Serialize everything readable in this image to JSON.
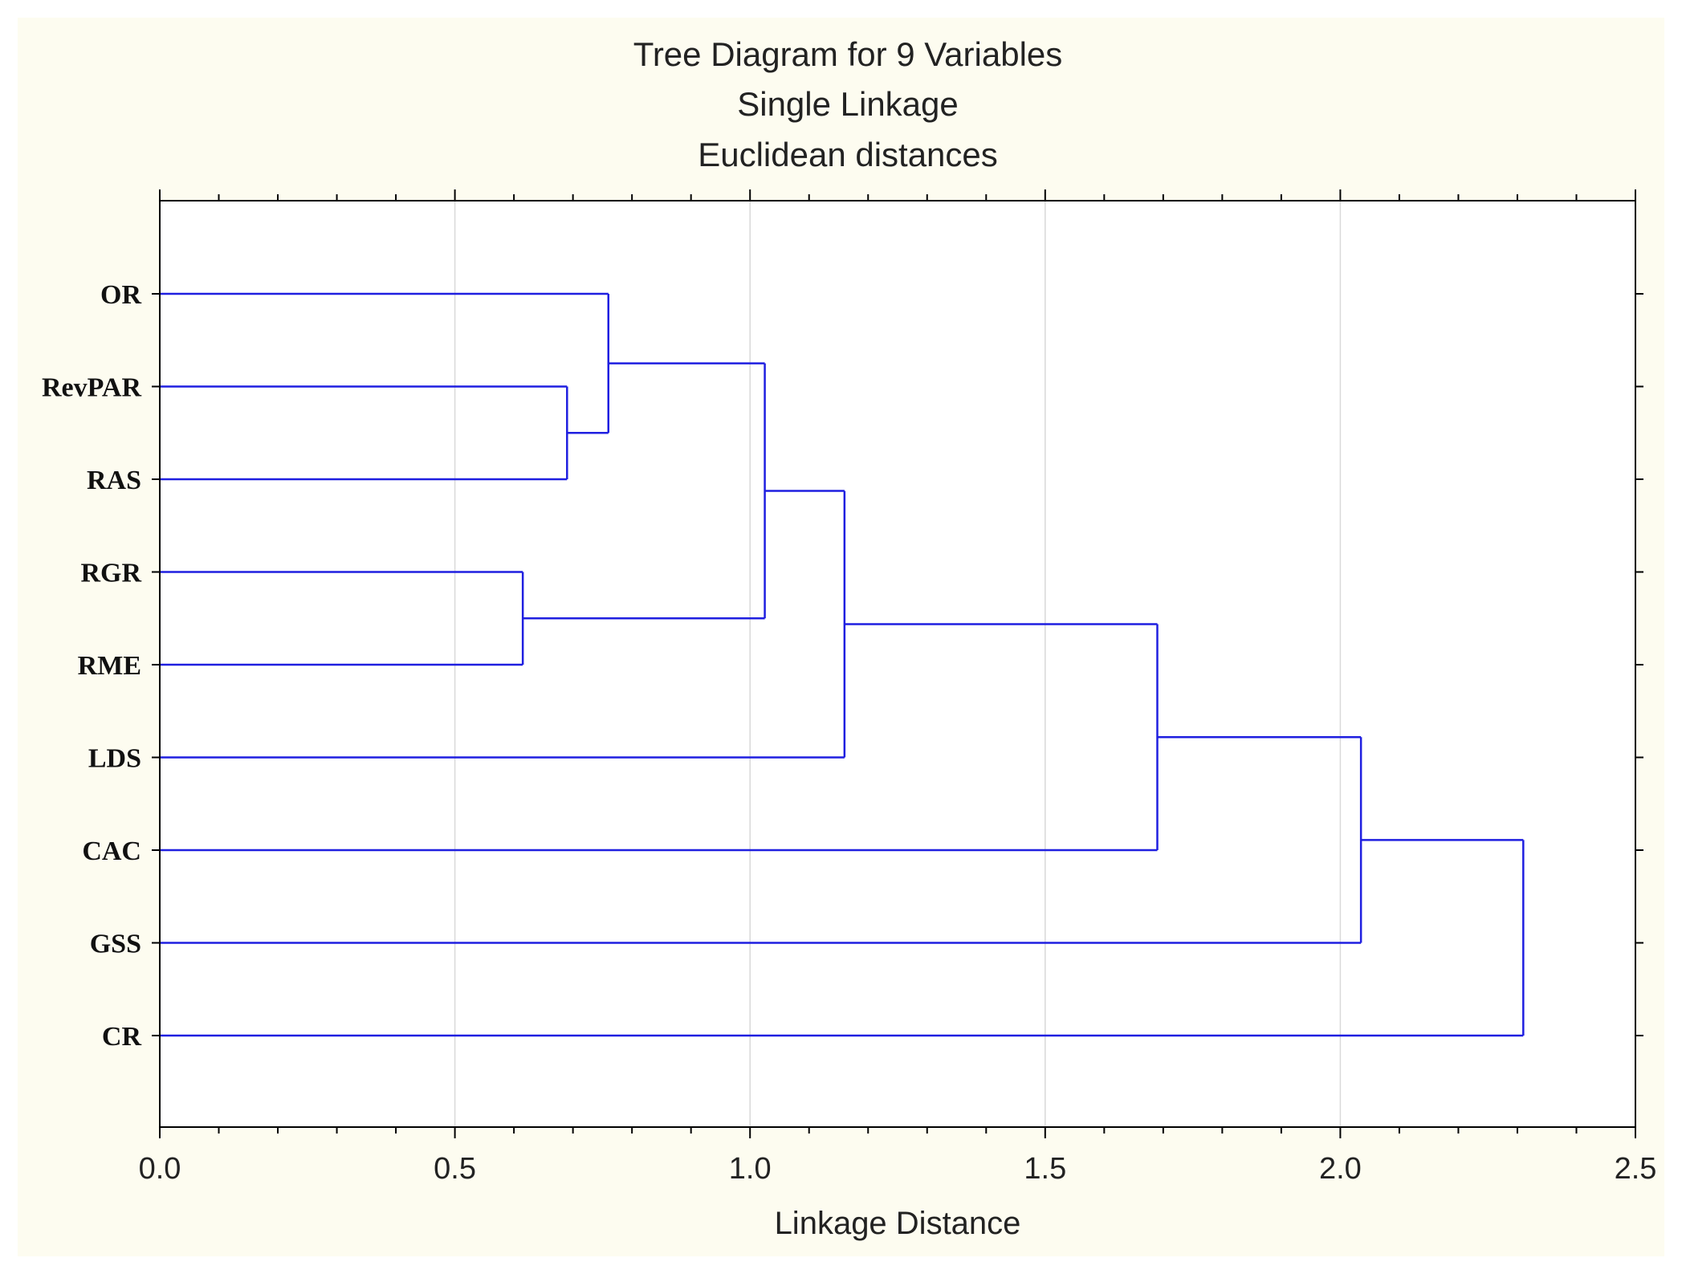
{
  "chart_data": {
    "type": "dendrogram",
    "title_lines": [
      "Tree Diagram for 9   Variables",
      "Single Linkage",
      "Euclidean distances"
    ],
    "xlabel": "Linkage Distance",
    "ylabel": "",
    "xlim": [
      0,
      2.5
    ],
    "xticks": [
      0.0,
      0.5,
      1.0,
      1.5,
      2.0,
      2.5
    ],
    "xtick_labels": [
      "0.0",
      "0.5",
      "1.0",
      "1.5",
      "2.0",
      "2.5"
    ],
    "minor_tick_step": 0.1,
    "grid": "vertical major",
    "orientation": "horizontal",
    "leaves": [
      "OR",
      "RevPAR",
      "RAS",
      "RGR",
      "RME",
      "LDS",
      "CAC",
      "GSS",
      "CR"
    ],
    "merges": [
      {
        "left": "RGR",
        "right": "RME",
        "distance": 0.615
      },
      {
        "left": "RevPAR",
        "right": "RAS",
        "distance": 0.69
      },
      {
        "left": "OR",
        "right": "RevPAR+RAS",
        "distance": 0.76
      },
      {
        "left": "OR+RevPAR+RAS",
        "right": "RGR+RME",
        "distance": 1.025
      },
      {
        "left": "OR+RevPAR+RAS+RGR+RME",
        "right": "LDS",
        "distance": 1.16
      },
      {
        "left": "OR+RevPAR+RAS+RGR+RME+LDS",
        "right": "CAC",
        "distance": 1.69
      },
      {
        "left": "OR+RevPAR+RAS+RGR+RME+LDS+CAC",
        "right": "GSS",
        "distance": 2.035
      },
      {
        "left": "OR+RevPAR+RAS+RGR+RME+LDS+CAC+GSS",
        "right": "CR",
        "distance": 2.31
      }
    ]
  },
  "colors": {
    "page_background": "#fdfcf0",
    "plot_background": "#ffffff",
    "branch": "#1f1fe0",
    "grid": "#d9d9d9",
    "axis": "#000000",
    "text": "#222222"
  }
}
